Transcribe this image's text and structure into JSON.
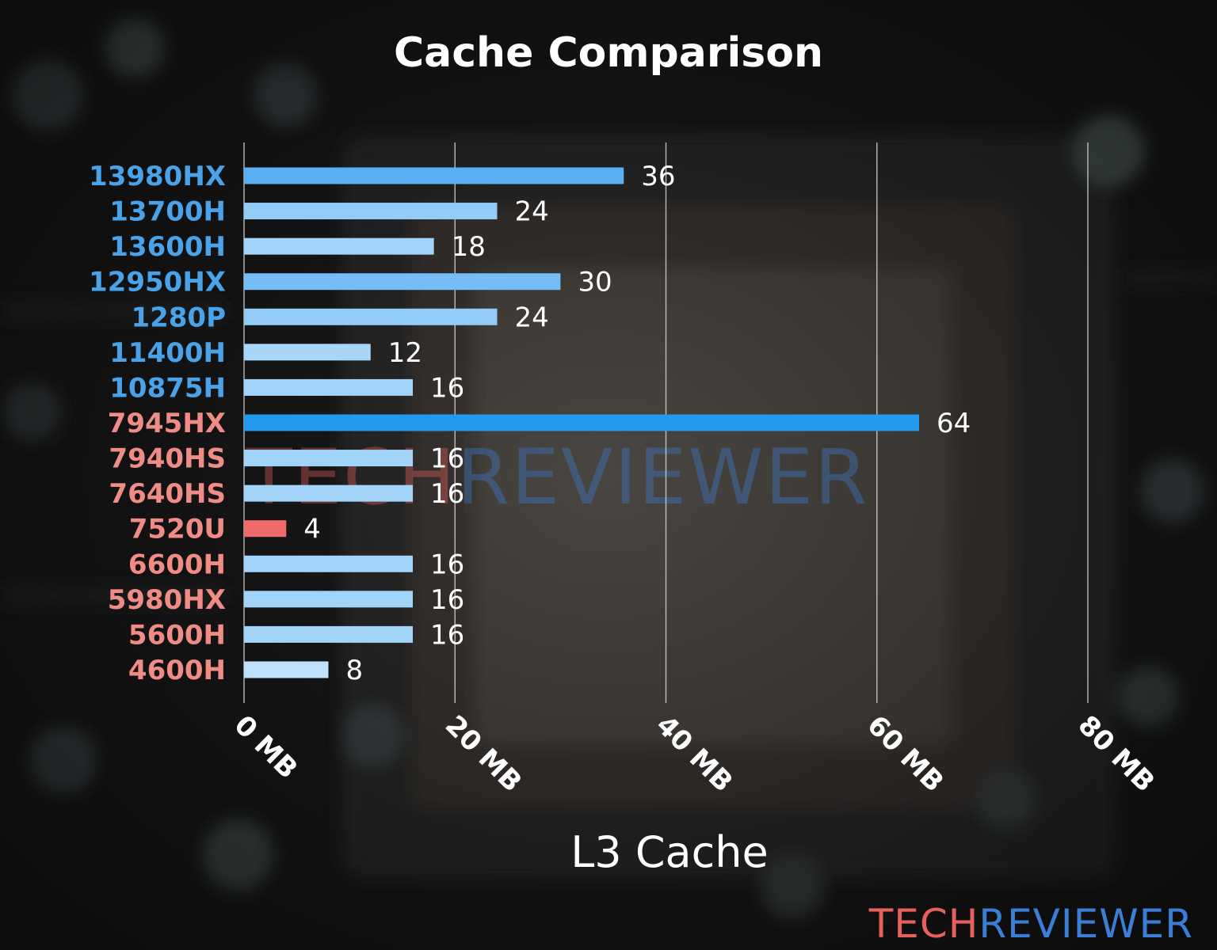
{
  "colors": {
    "brand_red": "#e8605c",
    "brand_blue": "#3a7fd5",
    "intel_label": "#4aa3e8",
    "amd_label": "#f08c86",
    "grid": "#d8d8d8"
  },
  "watermark": {
    "part1": "TECH",
    "part2": "REVIEWER"
  },
  "logo": {
    "part1": "TECH",
    "part2": "REVIEWER"
  },
  "chart_data": {
    "type": "bar",
    "orientation": "horizontal",
    "title": "Cache Comparison",
    "xlabel": "L3 Cache",
    "ylabel": "",
    "xlim": [
      0,
      80
    ],
    "xticks": [
      0,
      20,
      40,
      60,
      80
    ],
    "xtick_labels": [
      "0 MB",
      "20 MB",
      "40 MB",
      "60 MB",
      "80 MB"
    ],
    "grid": true,
    "legend": "none",
    "categories": [
      "13980HX",
      "13700H",
      "13600H",
      "12950HX",
      "1280P",
      "11400H",
      "10875H",
      "7945HX",
      "7940HS",
      "7640HS",
      "7520U",
      "6600H",
      "5980HX",
      "5600H",
      "4600H"
    ],
    "values": [
      36,
      24,
      18,
      30,
      24,
      12,
      16,
      64,
      16,
      16,
      4,
      16,
      16,
      16,
      8
    ],
    "value_labels": [
      "36",
      "24",
      "18",
      "30",
      "24",
      "12",
      "16",
      "64",
      "16",
      "16",
      "4",
      "16",
      "16",
      "16",
      "8"
    ],
    "label_colors": [
      "#4aa3e8",
      "#4aa3e8",
      "#4aa3e8",
      "#4aa3e8",
      "#4aa3e8",
      "#4aa3e8",
      "#4aa3e8",
      "#f08c86",
      "#f08c86",
      "#f08c86",
      "#f08c86",
      "#f08c86",
      "#f08c86",
      "#f08c86",
      "#f08c86"
    ],
    "bar_colors": [
      "#5ab0f2",
      "#94ccf8",
      "#a2d3f9",
      "#75bdf5",
      "#94ccf8",
      "#a8d6f9",
      "#a2d3f9",
      "#249aee",
      "#a2d3f9",
      "#a2d3f9",
      "#ef6b6b",
      "#a2d3f9",
      "#a2d3f9",
      "#a2d3f9",
      "#bfe1fb"
    ]
  }
}
